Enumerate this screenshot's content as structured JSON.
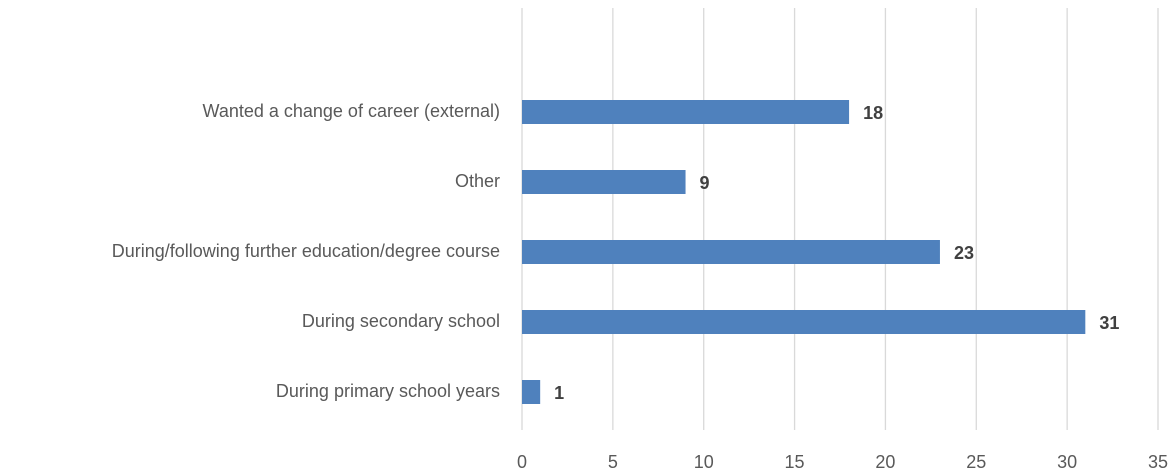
{
  "chart_data": {
    "type": "hbar",
    "categories": [
      "Wanted a change of career (external)",
      "Other",
      "During/following further education/degree course",
      "During secondary school",
      "During primary school years"
    ],
    "values": [
      18,
      9,
      23,
      31,
      1
    ],
    "color": "#4f81bd",
    "xlim": [
      0,
      35
    ],
    "xticks": [
      0,
      5,
      10,
      15,
      20,
      25,
      30,
      35
    ],
    "grid": true
  }
}
